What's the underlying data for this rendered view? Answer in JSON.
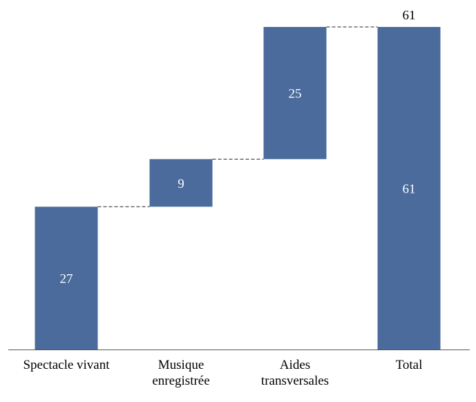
{
  "chart_data": {
    "type": "waterfall",
    "categories": [
      [
        "Spectacle vivant"
      ],
      [
        "Musique",
        "enregistrée"
      ],
      [
        "Aides",
        "transversales"
      ],
      [
        "Total"
      ]
    ],
    "values": [
      27,
      9,
      25,
      61
    ],
    "is_total": [
      false,
      false,
      false,
      true
    ],
    "total_label": "61",
    "ylim": [
      0,
      61
    ],
    "grid": false,
    "bar_color": "#4a6b9b",
    "connector_style": "dashed"
  }
}
